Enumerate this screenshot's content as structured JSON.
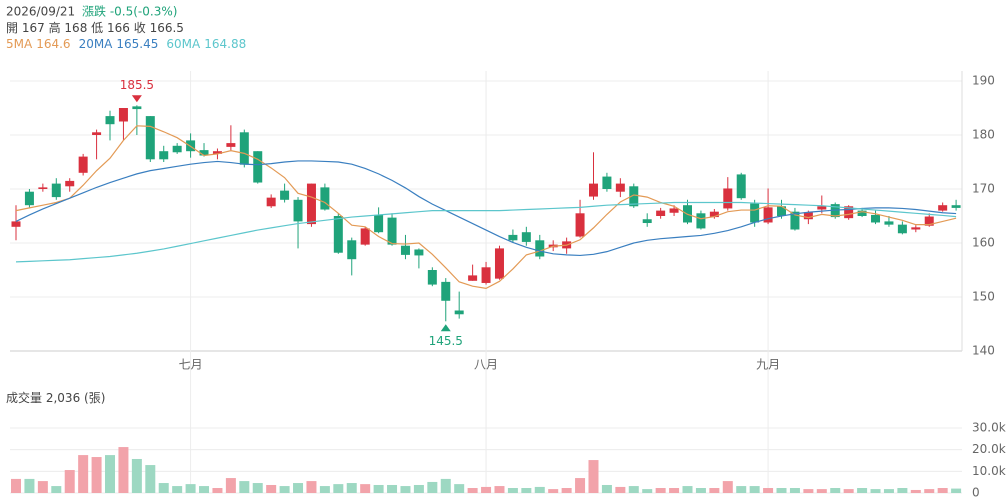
{
  "header": {
    "date": "2026/09/21",
    "change": "漲跌 -0.5(-0.3%)",
    "open_label": "開",
    "high_label": "高",
    "low_label": "低",
    "close_label": "收"
  },
  "chart_data": [
    {
      "type": "candlestick",
      "categories": [
        null,
        null,
        null,
        null,
        null,
        null,
        null,
        null,
        null,
        null,
        null,
        null,
        null,
        "七月",
        null,
        null,
        null,
        null,
        null,
        null,
        null,
        null,
        null,
        null,
        null,
        null,
        null,
        null,
        null,
        null,
        null,
        null,
        null,
        null,
        null,
        "八月",
        null,
        null,
        null,
        null,
        null,
        null,
        null,
        null,
        null,
        null,
        null,
        null,
        null,
        null,
        null,
        null,
        null,
        null,
        null,
        null,
        "九月",
        null,
        null,
        null,
        null,
        null,
        null,
        null,
        null,
        null,
        null,
        null,
        null,
        null,
        null
      ],
      "open": [
        163,
        169.5,
        170,
        171,
        170.5,
        173,
        180,
        183.5,
        182.5,
        185.3,
        183.5,
        177,
        178,
        179,
        177.2,
        176.5,
        177.8,
        180.5,
        177,
        166.8,
        169.7,
        168,
        163.5,
        170.3,
        165,
        160.5,
        159.7,
        165.2,
        164.7,
        159.5,
        158.8,
        155,
        152.8,
        147.5,
        153,
        152.6,
        153.4,
        161.5,
        162,
        160.5,
        159.2,
        159,
        161.2,
        168.6,
        172.3,
        169.5,
        170.5,
        164.4,
        165,
        165.6,
        167,
        165.5,
        164.8,
        166.4,
        172.7,
        167.3,
        163.8,
        166.8,
        165.8,
        164.4,
        166.2,
        167.2,
        164.6,
        166,
        165.2,
        164,
        163.4,
        162.5,
        163.2,
        166,
        167
      ],
      "high": [
        167,
        170,
        171,
        172,
        172,
        176.5,
        181,
        184.5,
        185,
        185.5,
        183.5,
        178,
        178.5,
        180.3,
        178.5,
        177.5,
        181.8,
        181,
        177,
        169,
        171,
        168.5,
        171,
        171,
        165.5,
        161,
        163,
        166.6,
        165.5,
        161.5,
        159,
        155.5,
        153.5,
        151,
        156,
        156.5,
        159.5,
        162.5,
        163,
        161.5,
        160.5,
        161,
        168,
        176.8,
        173,
        172,
        171,
        165.5,
        166.5,
        167,
        168,
        166,
        166.3,
        172.2,
        173,
        168,
        170.1,
        168,
        166.5,
        166,
        168.8,
        167.5,
        167,
        166.5,
        166,
        165,
        164,
        163.3,
        165.5,
        167.5,
        168
      ],
      "low": [
        160.5,
        166.5,
        169.5,
        168,
        169.5,
        172.5,
        175.5,
        179,
        179,
        180,
        175,
        175,
        176.5,
        175.8,
        176,
        175.5,
        177,
        174,
        171,
        166.5,
        167.5,
        159,
        163,
        166,
        158,
        154,
        159.5,
        161.8,
        159.5,
        157,
        155.3,
        152,
        145.5,
        146,
        153,
        152.3,
        153.2,
        160,
        159.5,
        157,
        158.5,
        158,
        161,
        168,
        169.5,
        168.5,
        166.5,
        163,
        164.5,
        165,
        163.5,
        162.5,
        164.5,
        166,
        168,
        163,
        163.5,
        164.5,
        162.3,
        163.5,
        165.5,
        164.5,
        164.3,
        164.8,
        163.5,
        163,
        161.6,
        162,
        163,
        165.8,
        166
      ],
      "close": [
        164,
        167,
        170.3,
        168.5,
        171.5,
        176,
        180.5,
        182,
        185,
        184.8,
        175.5,
        175.5,
        176.8,
        177,
        176.2,
        177,
        178.5,
        174.5,
        171.2,
        168.4,
        168,
        164,
        171,
        166.2,
        158.2,
        157,
        162.7,
        162,
        159.7,
        157.8,
        157.7,
        152.3,
        149.3,
        146.8,
        154,
        155.5,
        159,
        160.5,
        160.2,
        157.5,
        159.7,
        160.3,
        165.5,
        171,
        170,
        171,
        166.8,
        163.7,
        166,
        166.4,
        163.8,
        162.7,
        165.8,
        170.1,
        168.3,
        163.8,
        166.6,
        165,
        162.5,
        165.7,
        166.8,
        164.8,
        166.8,
        165,
        163.8,
        163.4,
        161.8,
        162.9,
        164.9,
        167,
        166.5
      ],
      "up_color": "#d9303e",
      "down_color": "#1fa37a",
      "series": [
        {
          "name": "5MA",
          "color": "#e39a55",
          "values": [
            166,
            166.5,
            167,
            167.5,
            168.3,
            170.7,
            173.4,
            175.7,
            179,
            181.7,
            181.6,
            180.6,
            179.5,
            177.9,
            176.2,
            176.5,
            177.1,
            176.6,
            175.5,
            173.9,
            172.1,
            169.2,
            168.5,
            167.5,
            165.5,
            163.3,
            163,
            161.2,
            159.9,
            159.8,
            160,
            157.9,
            155.4,
            152.8,
            152,
            151.6,
            152.9,
            155.2,
            157.8,
            158.5,
            159.4,
            159.6,
            160.6,
            162.8,
            165.3,
            167.6,
            168.9,
            168.5,
            167.5,
            166.8,
            165.3,
            164.5,
            164.9,
            165.8,
            166.1,
            166.1,
            166.9,
            166.8,
            165.2,
            164.7,
            165.3,
            165,
            165.3,
            165.8,
            165.4,
            164.8,
            164.2,
            163.4,
            163.4,
            164,
            164.6
          ]
        },
        {
          "name": "20MA",
          "color": "#3a7fc0",
          "values": [
            164,
            165.2,
            166.3,
            167.3,
            168.3,
            169.3,
            170.3,
            171.2,
            172,
            172.8,
            173.4,
            173.8,
            174.2,
            174.6,
            174.9,
            175.1,
            174.9,
            174.6,
            174.5,
            174.7,
            175,
            175.2,
            175.2,
            175.1,
            175,
            174.6,
            173.8,
            172.8,
            171.6,
            170.2,
            168.6,
            167.2,
            166,
            164.8,
            163.6,
            162.4,
            161.2,
            160.1,
            159.2,
            158.5,
            158,
            157.8,
            157.7,
            157.9,
            158.4,
            159.2,
            160,
            160.5,
            160.8,
            161,
            161.2,
            161.4,
            161.8,
            162.3,
            163,
            163.8,
            164.5,
            165,
            165.4,
            165.7,
            165.9,
            166.1,
            166.2,
            166.4,
            166.5,
            166.5,
            166.4,
            166.2,
            165.9,
            165.6,
            165.45
          ]
        },
        {
          "name": "60MA",
          "color": "#5cc6cc",
          "values": [
            156.5,
            156.6,
            156.7,
            156.8,
            156.9,
            157.1,
            157.3,
            157.5,
            157.8,
            158.1,
            158.5,
            158.9,
            159.4,
            159.9,
            160.4,
            160.9,
            161.4,
            161.9,
            162.4,
            162.8,
            163.2,
            163.6,
            163.9,
            164.2,
            164.5,
            164.8,
            165,
            165.2,
            165.4,
            165.6,
            165.8,
            166,
            166,
            166,
            166,
            166,
            166,
            166.1,
            166.2,
            166.3,
            166.4,
            166.5,
            166.6,
            166.8,
            167,
            167.1,
            167.2,
            167.3,
            167.4,
            167.5,
            167.5,
            167.5,
            167.5,
            167.5,
            167.5,
            167.4,
            167.3,
            167.2,
            167.1,
            167,
            166.9,
            166.7,
            166.5,
            166.3,
            166.1,
            165.9,
            165.7,
            165.5,
            165.3,
            165.1,
            164.88
          ]
        }
      ],
      "ylim": [
        140,
        190
      ],
      "yticks": [
        140,
        150,
        160,
        170,
        180,
        190
      ],
      "grid": true
    },
    {
      "type": "bar",
      "title": "成交量",
      "unit": "(張)",
      "values": [
        6500,
        6500,
        5500,
        3200,
        10600,
        17500,
        16600,
        17500,
        21200,
        15700,
        12900,
        4600,
        3200,
        4100,
        3200,
        2300,
        6900,
        5500,
        4600,
        3700,
        3200,
        4600,
        5500,
        3200,
        4100,
        4600,
        4100,
        3700,
        3700,
        3200,
        3700,
        5100,
        6500,
        4100,
        2300,
        2800,
        3200,
        2300,
        2300,
        2800,
        1800,
        2300,
        6900,
        15200,
        3700,
        2800,
        3200,
        1800,
        2300,
        2300,
        3200,
        2300,
        2300,
        5500,
        3200,
        3200,
        2300,
        2300,
        2300,
        1800,
        1800,
        2300,
        1800,
        2300,
        1800,
        1800,
        2300,
        1400,
        1800,
        2300,
        2036
      ],
      "value_labels": [
        null,
        null,
        null,
        null,
        null,
        null,
        null,
        null,
        null,
        null,
        null,
        null,
        null,
        null,
        null,
        null,
        null,
        null,
        null,
        null,
        null,
        null,
        null,
        null,
        null,
        null,
        null,
        null,
        null,
        null,
        null,
        null,
        null,
        null,
        null,
        null,
        null,
        null,
        null,
        null,
        null,
        null,
        null,
        null,
        null,
        null,
        null,
        null,
        null,
        null,
        null,
        null,
        null,
        null,
        null,
        null,
        null,
        null,
        null,
        null,
        null,
        null,
        null,
        null,
        null,
        null,
        null,
        null,
        null,
        null,
        "2,036"
      ],
      "up_color": "#f2a3aa",
      "down_color": "#9dd8c2",
      "ylim": [
        0,
        30000
      ],
      "yticks": [
        0,
        {
          "value": 10000,
          "label": "10.0k"
        },
        {
          "value": 20000,
          "label": "20.0k"
        },
        {
          "value": 30000,
          "label": "30.0k"
        }
      ],
      "grid": true
    }
  ]
}
